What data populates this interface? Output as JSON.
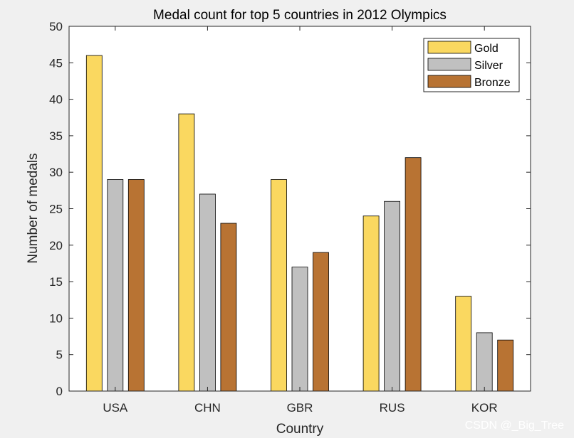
{
  "chart_data": {
    "type": "bar",
    "title": "Medal count for top 5 countries in 2012 Olympics",
    "xlabel": "Country",
    "ylabel": "Number of medals",
    "categories": [
      "USA",
      "CHN",
      "GBR",
      "RUS",
      "KOR"
    ],
    "series": [
      {
        "name": "Gold",
        "color": "#fad860",
        "values": [
          46,
          38,
          29,
          24,
          13
        ]
      },
      {
        "name": "Silver",
        "color": "#c0c0c0",
        "values": [
          29,
          27,
          17,
          26,
          8
        ]
      },
      {
        "name": "Bronze",
        "color": "#b87333",
        "values": [
          29,
          23,
          19,
          32,
          7
        ]
      }
    ],
    "ylim": [
      0,
      50
    ],
    "yticks": [
      0,
      5,
      10,
      15,
      20,
      25,
      30,
      35,
      40,
      45,
      50
    ],
    "grid": false,
    "legend_position": "top-right"
  },
  "watermark": "CSDN @_Big_Tree",
  "colors": {
    "background": "#f0f0f0",
    "axes_bg": "#ffffff",
    "axis": "#262626"
  }
}
